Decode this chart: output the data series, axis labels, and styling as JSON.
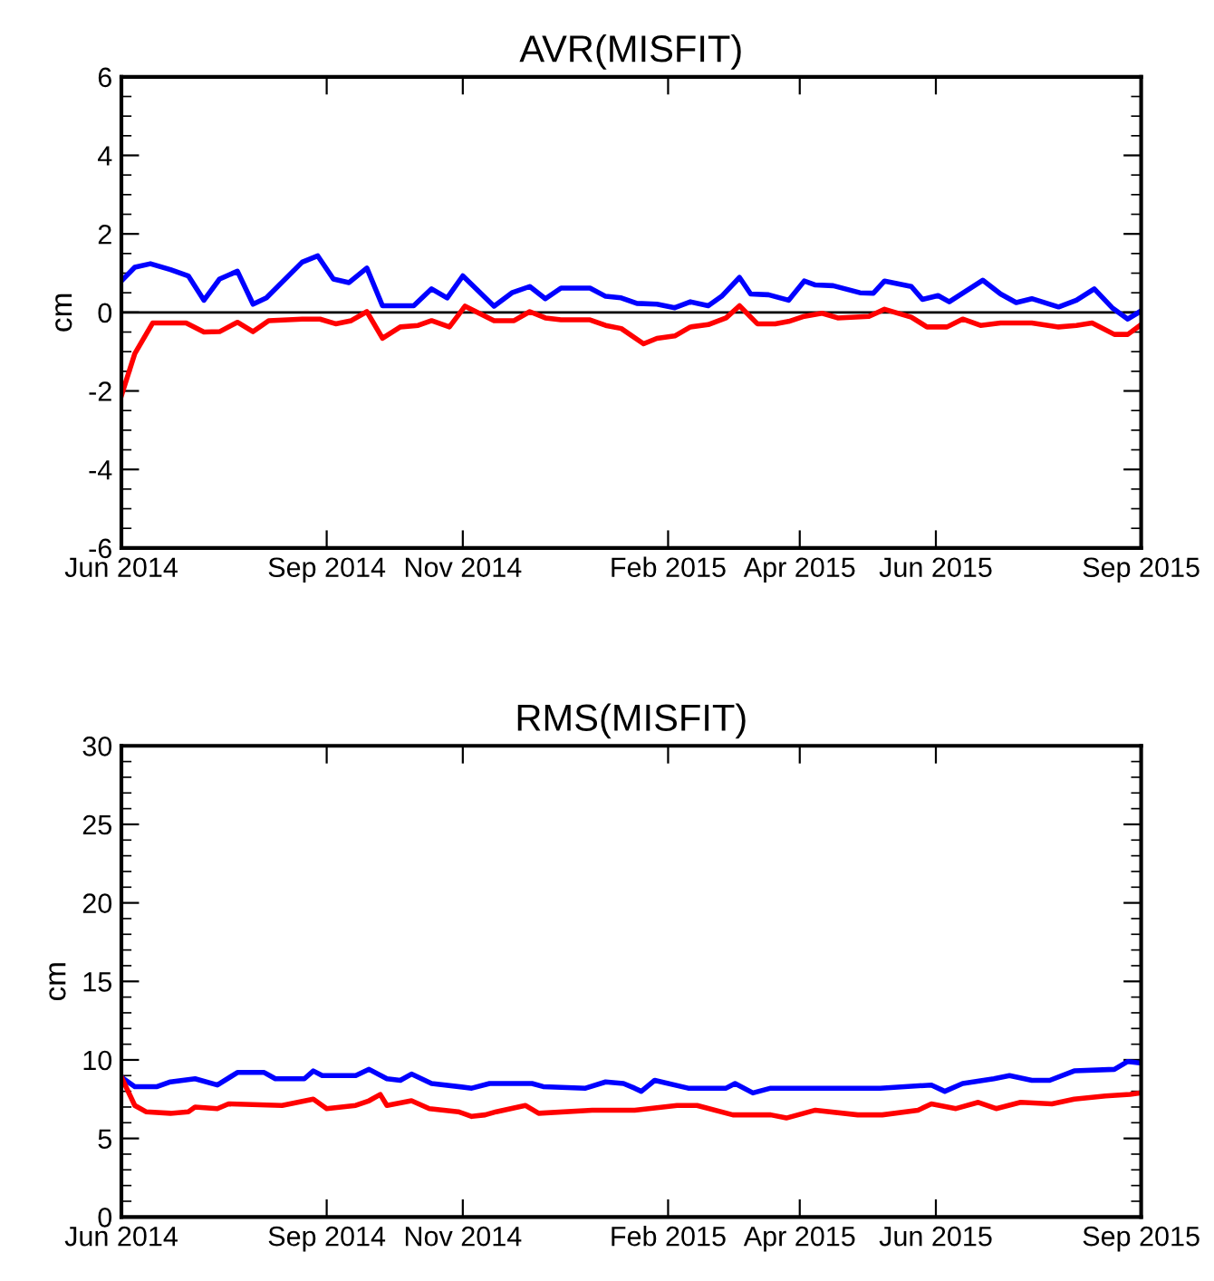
{
  "chart_data": [
    {
      "type": "line",
      "title": "AVR(MISFIT)",
      "ylabel": "cm",
      "ylim": [
        -6,
        6
      ],
      "yticks": [
        -6,
        -4,
        -2,
        0,
        2,
        4,
        6
      ],
      "xlim": [
        "2014-06-01",
        "2015-09-01"
      ],
      "xticks": [
        {
          "value": "2014-06-01",
          "label": "Jun 2014"
        },
        {
          "value": "2014-09-01",
          "label": "Sep 2014"
        },
        {
          "value": "2014-11-01",
          "label": "Nov 2014"
        },
        {
          "value": "2015-02-01",
          "label": "Feb 2015"
        },
        {
          "value": "2015-04-01",
          "label": "Apr 2015"
        },
        {
          "value": "2015-06-01",
          "label": "Jun 2015"
        },
        {
          "value": "2015-09-01",
          "label": "Sep 2015"
        }
      ],
      "grid": false,
      "legend": false,
      "ref_lines": [
        {
          "axis": "y",
          "value": 0,
          "color": "#000000"
        }
      ],
      "series": [
        {
          "color": "#0000ff",
          "x": [
            "2014-06-01",
            "2014-06-07",
            "2014-06-14",
            "2014-06-23",
            "2014-07-01",
            "2014-07-08",
            "2014-07-15",
            "2014-07-23",
            "2014-07-30",
            "2014-08-05",
            "2014-08-21",
            "2014-08-28",
            "2014-09-04",
            "2014-09-11",
            "2014-09-19",
            "2014-09-26",
            "2014-10-10",
            "2014-10-18",
            "2014-10-25",
            "2014-11-01",
            "2014-11-15",
            "2014-11-23",
            "2014-12-01",
            "2014-12-08",
            "2014-12-15",
            "2014-12-28",
            "2015-01-04",
            "2015-01-11",
            "2015-01-18",
            "2015-01-27",
            "2015-02-04",
            "2015-02-11",
            "2015-02-19",
            "2015-02-25",
            "2015-03-05",
            "2015-03-10",
            "2015-03-18",
            "2015-03-27",
            "2015-04-03",
            "2015-04-08",
            "2015-04-16",
            "2015-04-28",
            "2015-05-04",
            "2015-05-09",
            "2015-05-21",
            "2015-05-26",
            "2015-06-02",
            "2015-06-07",
            "2015-06-22",
            "2015-06-30",
            "2015-07-07",
            "2015-07-14",
            "2015-07-26",
            "2015-08-03",
            "2015-08-11",
            "2015-08-19",
            "2015-08-26",
            "2015-09-01"
          ],
          "values": [
            0.8,
            1.15,
            1.24,
            1.09,
            0.93,
            0.31,
            0.85,
            1.05,
            0.21,
            0.37,
            1.28,
            1.44,
            0.85,
            0.76,
            1.13,
            0.17,
            0.17,
            0.6,
            0.37,
            0.93,
            0.16,
            0.5,
            0.66,
            0.35,
            0.62,
            0.62,
            0.41,
            0.37,
            0.23,
            0.21,
            0.12,
            0.27,
            0.17,
            0.41,
            0.89,
            0.47,
            0.45,
            0.31,
            0.8,
            0.7,
            0.68,
            0.5,
            0.49,
            0.8,
            0.66,
            0.33,
            0.43,
            0.27,
            0.82,
            0.47,
            0.25,
            0.35,
            0.14,
            0.31,
            0.6,
            0.12,
            -0.17,
            0.04
          ]
        },
        {
          "color": "#ff0000",
          "x": [
            "2014-06-01",
            "2014-06-07",
            "2014-06-15",
            "2014-06-30",
            "2014-07-08",
            "2014-07-15",
            "2014-07-23",
            "2014-07-30",
            "2014-08-06",
            "2014-08-21",
            "2014-08-29",
            "2014-09-05",
            "2014-09-12",
            "2014-09-19",
            "2014-09-26",
            "2014-10-04",
            "2014-10-12",
            "2014-10-18",
            "2014-10-26",
            "2014-11-02",
            "2014-11-15",
            "2014-11-24",
            "2014-12-01",
            "2014-12-08",
            "2014-12-15",
            "2014-12-28",
            "2015-01-04",
            "2015-01-11",
            "2015-01-21",
            "2015-01-27",
            "2015-02-04",
            "2015-02-11",
            "2015-02-19",
            "2015-02-27",
            "2015-03-05",
            "2015-03-13",
            "2015-03-21",
            "2015-03-27",
            "2015-04-03",
            "2015-04-11",
            "2015-04-18",
            "2015-05-02",
            "2015-05-09",
            "2015-05-21",
            "2015-05-28",
            "2015-06-06",
            "2015-06-13",
            "2015-06-21",
            "2015-06-30",
            "2015-07-14",
            "2015-07-26",
            "2015-08-03",
            "2015-08-10",
            "2015-08-20",
            "2015-08-26",
            "2015-09-01"
          ],
          "values": [
            -2.12,
            -1.05,
            -0.27,
            -0.27,
            -0.5,
            -0.49,
            -0.25,
            -0.49,
            -0.21,
            -0.17,
            -0.17,
            -0.29,
            -0.21,
            0.02,
            -0.66,
            -0.37,
            -0.33,
            -0.21,
            -0.37,
            0.16,
            -0.21,
            -0.21,
            0.02,
            -0.14,
            -0.19,
            -0.19,
            -0.33,
            -0.41,
            -0.8,
            -0.66,
            -0.6,
            -0.37,
            -0.31,
            -0.14,
            0.17,
            -0.29,
            -0.29,
            -0.23,
            -0.1,
            -0.02,
            -0.14,
            -0.1,
            0.08,
            -0.12,
            -0.37,
            -0.37,
            -0.17,
            -0.33,
            -0.27,
            -0.27,
            -0.37,
            -0.33,
            -0.27,
            -0.56,
            -0.56,
            -0.31
          ]
        }
      ]
    },
    {
      "type": "line",
      "title": "RMS(MISFIT)",
      "ylabel": "cm",
      "ylim": [
        0,
        30
      ],
      "yticks": [
        0,
        5,
        10,
        15,
        20,
        25,
        30
      ],
      "xlim": [
        "2014-06-01",
        "2015-09-01"
      ],
      "xticks": [
        {
          "value": "2014-06-01",
          "label": "Jun 2014"
        },
        {
          "value": "2014-09-01",
          "label": "Sep 2014"
        },
        {
          "value": "2014-11-01",
          "label": "Nov 2014"
        },
        {
          "value": "2015-02-01",
          "label": "Feb 2015"
        },
        {
          "value": "2015-04-01",
          "label": "Apr 2015"
        },
        {
          "value": "2015-06-01",
          "label": "Jun 2015"
        },
        {
          "value": "2015-09-01",
          "label": "Sep 2015"
        }
      ],
      "grid": false,
      "legend": false,
      "series": [
        {
          "color": "#0000ff",
          "x": [
            "2014-06-01",
            "2014-06-07",
            "2014-06-17",
            "2014-06-23",
            "2014-07-04",
            "2014-07-14",
            "2014-07-23",
            "2014-08-04",
            "2014-08-09",
            "2014-08-22",
            "2014-08-26",
            "2014-08-30",
            "2014-09-14",
            "2014-09-20",
            "2014-09-28",
            "2014-10-04",
            "2014-10-09",
            "2014-10-18",
            "2014-11-05",
            "2014-11-13",
            "2014-12-02",
            "2014-12-07",
            "2014-12-26",
            "2015-01-04",
            "2015-01-12",
            "2015-01-17",
            "2015-01-20",
            "2015-01-26",
            "2015-02-10",
            "2015-02-27",
            "2015-03-03",
            "2015-03-11",
            "2015-03-19",
            "2015-05-07",
            "2015-05-30",
            "2015-06-05",
            "2015-06-13",
            "2015-06-27",
            "2015-07-04",
            "2015-07-14",
            "2015-07-22",
            "2015-08-02",
            "2015-08-20",
            "2015-08-26",
            "2015-09-01"
          ],
          "values": [
            8.9,
            8.3,
            8.3,
            8.6,
            8.8,
            8.4,
            9.2,
            9.2,
            8.8,
            8.8,
            9.3,
            9.0,
            9.0,
            9.4,
            8.8,
            8.7,
            9.1,
            8.5,
            8.2,
            8.5,
            8.5,
            8.3,
            8.2,
            8.6,
            8.5,
            8.2,
            8.0,
            8.7,
            8.2,
            8.2,
            8.5,
            7.9,
            8.2,
            8.2,
            8.4,
            8.0,
            8.5,
            8.8,
            9.0,
            8.7,
            8.7,
            9.3,
            9.4,
            9.9,
            9.8
          ]
        },
        {
          "color": "#ff0000",
          "x": [
            "2014-06-01",
            "2014-06-07",
            "2014-06-12",
            "2014-06-23",
            "2014-07-01",
            "2014-07-04",
            "2014-07-14",
            "2014-07-19",
            "2014-08-12",
            "2014-08-26",
            "2014-09-01",
            "2014-09-14",
            "2014-09-20",
            "2014-09-25",
            "2014-09-28",
            "2014-10-09",
            "2014-10-17",
            "2014-10-30",
            "2014-11-05",
            "2014-11-11",
            "2014-11-16",
            "2014-11-29",
            "2014-12-05",
            "2014-12-29",
            "2015-01-17",
            "2015-02-05",
            "2015-02-14",
            "2015-03-02",
            "2015-03-19",
            "2015-03-26",
            "2015-04-08",
            "2015-04-27",
            "2015-05-08",
            "2015-05-24",
            "2015-05-30",
            "2015-06-10",
            "2015-06-20",
            "2015-06-28",
            "2015-07-09",
            "2015-07-23",
            "2015-08-02",
            "2015-08-16",
            "2015-08-27",
            "2015-09-01"
          ],
          "values": [
            8.9,
            7.1,
            6.7,
            6.6,
            6.7,
            7.0,
            6.9,
            7.2,
            7.1,
            7.5,
            6.9,
            7.1,
            7.4,
            7.8,
            7.1,
            7.4,
            6.9,
            6.7,
            6.4,
            6.5,
            6.7,
            7.1,
            6.6,
            6.8,
            6.8,
            7.1,
            7.1,
            6.5,
            6.5,
            6.3,
            6.8,
            6.5,
            6.5,
            6.8,
            7.2,
            6.9,
            7.3,
            6.9,
            7.3,
            7.2,
            7.5,
            7.7,
            7.8,
            7.9
          ]
        }
      ]
    }
  ]
}
